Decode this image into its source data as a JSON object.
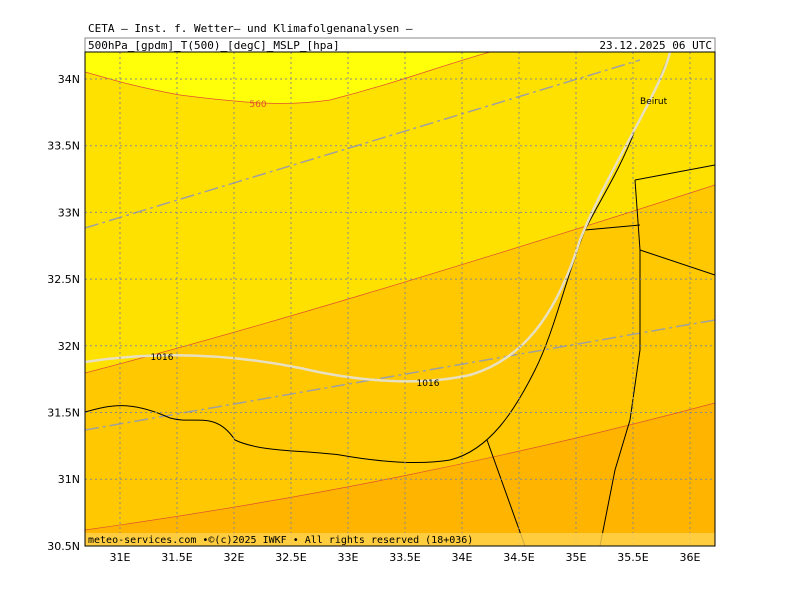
{
  "header": {
    "title": "CETA — Inst. f. Wetter— und Klimafolgenanalysen —",
    "fields": "500hPa_[gpdm]_T(500)_[degC]_MSLP_[hpa]",
    "date": "23.12.2025 06 UTC"
  },
  "map": {
    "lat_labels": [
      "34N",
      "33.5N",
      "33N",
      "32.5N",
      "32N",
      "31.5N",
      "31N",
      "30.5N"
    ],
    "lon_labels": [
      "31E",
      "31.5E",
      "32E",
      "32.5E",
      "33E",
      "33.5E",
      "34E",
      "34.5E",
      "35E",
      "35.5E",
      "36E"
    ],
    "contour_labels": [
      "560",
      "1016",
      "1016"
    ],
    "places": [
      "Beirut"
    ],
    "footer": "meteo-services.com •©(c)2025 IWKF • All rights reserved (18+036)"
  }
}
